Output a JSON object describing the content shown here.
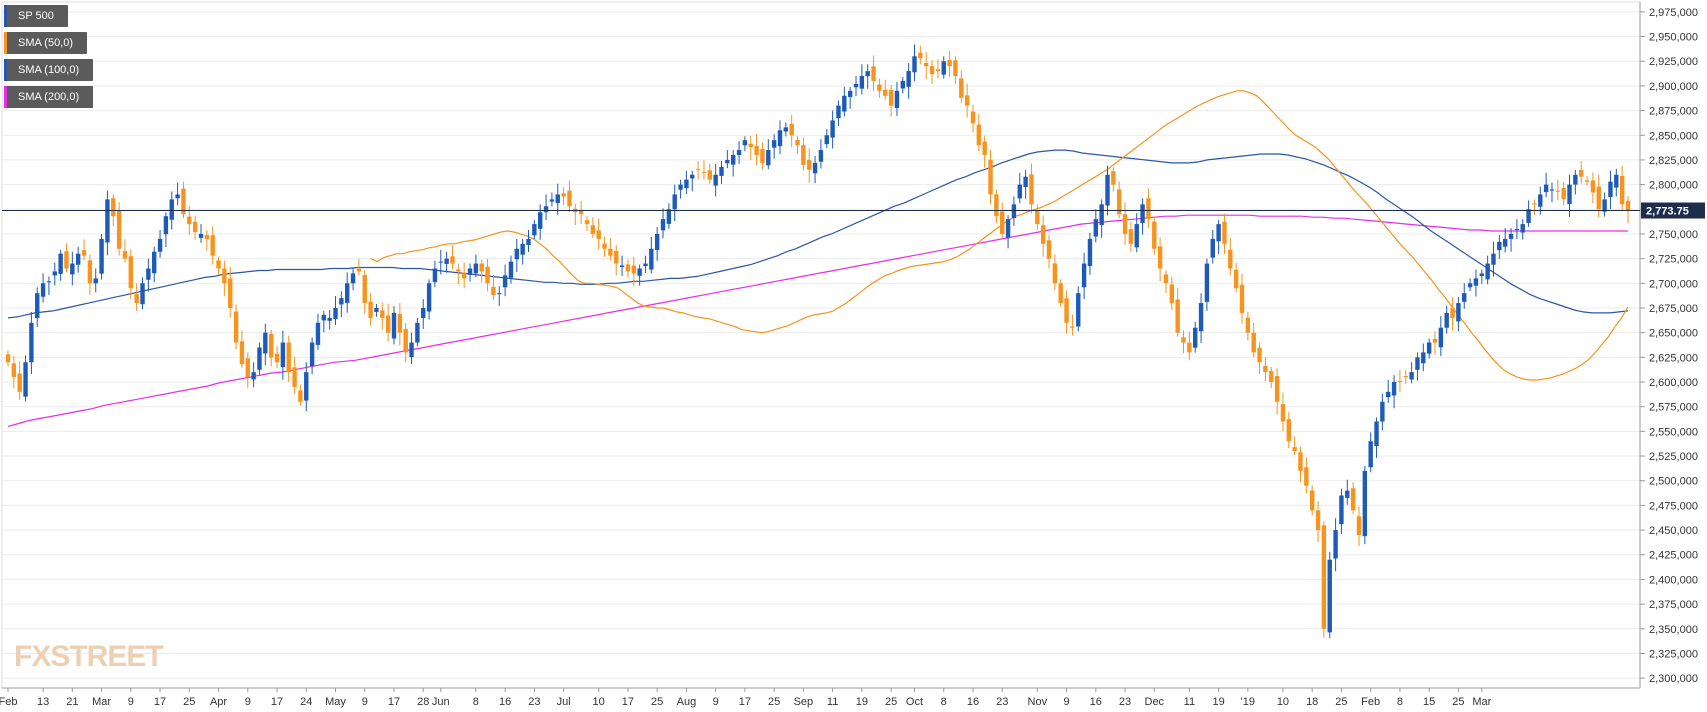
{
  "legend": [
    {
      "label": "SP 500",
      "color": "#2a56a8"
    },
    {
      "label": "SMA (50,0)",
      "color": "#f7931e"
    },
    {
      "label": "SMA (100,0)",
      "color": "#2a56a8"
    },
    {
      "label": "SMA (200,0)",
      "color": "#e62ee6"
    }
  ],
  "last_price_label": "2,773.75",
  "watermark": "FXSTREET",
  "colors": {
    "up": "#1e5bb8",
    "down": "#f7931e",
    "sma50": "#f7931e",
    "sma100": "#2a56a8",
    "sma200": "#e62ee6",
    "price_line": "#1f2d4d",
    "grid": "#ececec",
    "axis": "#9a9a9a"
  },
  "chart_data": {
    "type": "candlestick",
    "title": "SP 500",
    "ylim": [
      2290,
      2985
    ],
    "y_ticks": [
      "2,300,000",
      "2,325,000",
      "2,350,000",
      "2,375,000",
      "2,400,000",
      "2,425,000",
      "2,450,000",
      "2,475,000",
      "2,500,000",
      "2,525,000",
      "2,550,000",
      "2,575,000",
      "2,600,000",
      "2,625,000",
      "2,650,000",
      "2,675,000",
      "2,700,000",
      "2,725,000",
      "2,750,000",
      "2,775,000",
      "2,800,000",
      "2,825,000",
      "2,850,000",
      "2,875,000",
      "2,900,000",
      "2,925,000",
      "2,950,000",
      "2,975,000"
    ],
    "y_tick_values": [
      2300,
      2325,
      2350,
      2375,
      2400,
      2425,
      2450,
      2475,
      2500,
      2525,
      2550,
      2575,
      2600,
      2625,
      2650,
      2675,
      2700,
      2725,
      2750,
      2775,
      2800,
      2825,
      2850,
      2875,
      2900,
      2925,
      2950,
      2975
    ],
    "x_ticks": [
      {
        "label": "Feb",
        "bar": 0
      },
      {
        "label": "13",
        "bar": 6
      },
      {
        "label": "21",
        "bar": 11
      },
      {
        "label": "Mar",
        "bar": 16
      },
      {
        "label": "9",
        "bar": 21
      },
      {
        "label": "17",
        "bar": 26
      },
      {
        "label": "25",
        "bar": 31
      },
      {
        "label": "Apr",
        "bar": 36
      },
      {
        "label": "9",
        "bar": 41
      },
      {
        "label": "17",
        "bar": 46
      },
      {
        "label": "24",
        "bar": 51
      },
      {
        "label": "May",
        "bar": 56
      },
      {
        "label": "9",
        "bar": 61
      },
      {
        "label": "17",
        "bar": 66
      },
      {
        "label": "28",
        "bar": 71
      },
      {
        "label": "Jun",
        "bar": 74
      },
      {
        "label": "8",
        "bar": 80
      },
      {
        "label": "16",
        "bar": 85
      },
      {
        "label": "23",
        "bar": 90
      },
      {
        "label": "Jul",
        "bar": 95
      },
      {
        "label": "10",
        "bar": 101
      },
      {
        "label": "17",
        "bar": 106
      },
      {
        "label": "25",
        "bar": 111
      },
      {
        "label": "Aug",
        "bar": 116
      },
      {
        "label": "9",
        "bar": 121
      },
      {
        "label": "17",
        "bar": 126
      },
      {
        "label": "25",
        "bar": 131
      },
      {
        "label": "Sep",
        "bar": 136
      },
      {
        "label": "11",
        "bar": 141
      },
      {
        "label": "19",
        "bar": 146
      },
      {
        "label": "25",
        "bar": 151
      },
      {
        "label": "Oct",
        "bar": 155
      },
      {
        "label": "8",
        "bar": 160
      },
      {
        "label": "16",
        "bar": 165
      },
      {
        "label": "23",
        "bar": 170
      },
      {
        "label": "Nov",
        "bar": 176
      },
      {
        "label": "9",
        "bar": 181
      },
      {
        "label": "16",
        "bar": 186
      },
      {
        "label": "23",
        "bar": 191
      },
      {
        "label": "Dec",
        "bar": 196
      },
      {
        "label": "11",
        "bar": 202
      },
      {
        "label": "19",
        "bar": 207
      },
      {
        "label": "'19",
        "bar": 212
      },
      {
        "label": "10",
        "bar": 218
      },
      {
        "label": "18",
        "bar": 223
      },
      {
        "label": "25",
        "bar": 228
      },
      {
        "label": "Feb",
        "bar": 233
      },
      {
        "label": "8",
        "bar": 238
      },
      {
        "label": "15",
        "bar": 243
      },
      {
        "label": "25",
        "bar": 248
      },
      {
        "label": "Mar",
        "bar": 252
      }
    ],
    "close": [
      2620,
      2605,
      2590,
      2620,
      2660,
      2690,
      2700,
      2702,
      2712,
      2730,
      2715,
      2720,
      2730,
      2728,
      2700,
      2705,
      2745,
      2785,
      2768,
      2735,
      2725,
      2695,
      2680,
      2700,
      2715,
      2732,
      2745,
      2768,
      2785,
      2790,
      2770,
      2760,
      2752,
      2750,
      2745,
      2728,
      2715,
      2700,
      2675,
      2640,
      2618,
      2605,
      2610,
      2635,
      2650,
      2625,
      2620,
      2640,
      2610,
      2595,
      2580,
      2610,
      2640,
      2660,
      2668,
      2665,
      2675,
      2685,
      2700,
      2710,
      2712,
      2680,
      2665,
      2675,
      2665,
      2650,
      2670,
      2650,
      2630,
      2640,
      2660,
      2675,
      2700,
      2715,
      2722,
      2725,
      2720,
      2712,
      2705,
      2715,
      2720,
      2712,
      2700,
      2688,
      2690,
      2708,
      2722,
      2735,
      2740,
      2745,
      2760,
      2772,
      2778,
      2785,
      2790,
      2788,
      2778,
      2772,
      2770,
      2760,
      2750,
      2745,
      2735,
      2728,
      2720,
      2718,
      2712,
      2710,
      2715,
      2720,
      2735,
      2750,
      2765,
      2775,
      2790,
      2800,
      2805,
      2810,
      2815,
      2812,
      2805,
      2810,
      2818,
      2825,
      2830,
      2835,
      2845,
      2838,
      2830,
      2822,
      2835,
      2845,
      2855,
      2858,
      2850,
      2840,
      2820,
      2815,
      2822,
      2835,
      2850,
      2865,
      2880,
      2890,
      2895,
      2902,
      2910,
      2915,
      2905,
      2895,
      2890,
      2880,
      2895,
      2905,
      2915,
      2930,
      2928,
      2920,
      2912,
      2915,
      2925,
      2920,
      2910,
      2888,
      2880,
      2862,
      2840,
      2830,
      2790,
      2768,
      2750,
      2765,
      2780,
      2800,
      2808,
      2780,
      2760,
      2740,
      2725,
      2700,
      2680,
      2660,
      2655,
      2690,
      2720,
      2745,
      2765,
      2780,
      2810,
      2800,
      2770,
      2750,
      2740,
      2760,
      2780,
      2765,
      2735,
      2715,
      2700,
      2680,
      2650,
      2640,
      2630,
      2655,
      2680,
      2720,
      2745,
      2760,
      2740,
      2715,
      2695,
      2670,
      2650,
      2630,
      2620,
      2610,
      2600,
      2580,
      2560,
      2540,
      2530,
      2510,
      2495,
      2470,
      2450,
      2350,
      2420,
      2450,
      2485,
      2490,
      2470,
      2445,
      2510,
      2540,
      2560,
      2580,
      2590,
      2600,
      2600,
      2605,
      2610,
      2625,
      2630,
      2640,
      2640,
      2655,
      2670,
      2665,
      2680,
      2690,
      2700,
      2705,
      2710,
      2720,
      2730,
      2742,
      2745,
      2750,
      2755,
      2760,
      2775,
      2780,
      2790,
      2800,
      2795,
      2793,
      2785,
      2800,
      2810,
      2808,
      2803,
      2792,
      2775,
      2785,
      2803,
      2810,
      2780,
      2773.75
    ],
    "sma50_start": 0,
    "sma50": [
      2725,
      2722,
      2726,
      2728,
      2730,
      2730,
      2732,
      2733,
      2734,
      2736,
      2737,
      2739,
      2740,
      2740,
      2742,
      2743,
      2744,
      2746,
      2748,
      2750,
      2752,
      2753,
      2752,
      2750,
      2748,
      2745,
      2740,
      2735,
      2728,
      2722,
      2715,
      2708,
      2702,
      2700,
      2700,
      2699,
      2698,
      2697,
      2695,
      2690,
      2685,
      2680,
      2677,
      2676,
      2675,
      2675,
      2673,
      2671,
      2670,
      2668,
      2666,
      2665,
      2664,
      2662,
      2660,
      2658,
      2656,
      2653,
      2652,
      2651,
      2650,
      2651,
      2653,
      2655,
      2657,
      2660,
      2663,
      2666,
      2668,
      2669,
      2670,
      2672,
      2676,
      2680,
      2685,
      2690,
      2695,
      2700,
      2704,
      2708,
      2710,
      2713,
      2715,
      2717,
      2718,
      2719,
      2720,
      2721,
      2722,
      2724,
      2727,
      2731,
      2735,
      2740,
      2745,
      2750,
      2755,
      2760,
      2764,
      2768,
      2770,
      2773,
      2775,
      2777,
      2780,
      2783,
      2787,
      2791,
      2795,
      2799,
      2803,
      2807,
      2811,
      2815,
      2820,
      2825,
      2830,
      2835,
      2840,
      2845,
      2850,
      2855,
      2860,
      2864,
      2868,
      2872,
      2876,
      2880,
      2883,
      2886,
      2889,
      2891,
      2893,
      2895,
      2895,
      2893,
      2890,
      2884,
      2877,
      2870,
      2863,
      2856,
      2850,
      2846,
      2842,
      2838,
      2832,
      2826,
      2818,
      2810,
      2802,
      2794,
      2787,
      2780,
      2772,
      2764,
      2756,
      2748,
      2740,
      2733,
      2726,
      2718,
      2710,
      2702,
      2693,
      2685,
      2676,
      2667,
      2659,
      2650,
      2642,
      2633,
      2625,
      2618,
      2612,
      2608,
      2605,
      2603,
      2602,
      2602,
      2603,
      2604,
      2606,
      2608,
      2611,
      2614,
      2618,
      2623,
      2630,
      2638,
      2646,
      2656,
      2665,
      2676
    ],
    "sma50_x_start": 62,
    "sma100_start": 0,
    "sma100": [
      2665,
      2666,
      2668,
      2670,
      2671,
      2672,
      2674,
      2676,
      2678,
      2680,
      2682,
      2684,
      2686,
      2688,
      2690,
      2692,
      2694,
      2696,
      2698,
      2700,
      2702,
      2704,
      2706,
      2707,
      2709,
      2710,
      2711,
      2712,
      2713,
      2713,
      2714,
      2714,
      2714,
      2714,
      2714,
      2714,
      2715,
      2715,
      2715,
      2716,
      2716,
      2716,
      2716,
      2716,
      2715,
      2715,
      2715,
      2714,
      2713,
      2712,
      2711,
      2710,
      2709,
      2708,
      2707,
      2706,
      2705,
      2704,
      2703,
      2702,
      2701,
      2701,
      2700,
      2700,
      2699,
      2699,
      2699,
      2700,
      2700,
      2701,
      2702,
      2702,
      2703,
      2704,
      2705,
      2705,
      2706,
      2707,
      2709,
      2711,
      2713,
      2715,
      2717,
      2719,
      2722,
      2725,
      2728,
      2732,
      2735,
      2739,
      2743,
      2747,
      2750,
      2754,
      2758,
      2762,
      2766,
      2770,
      2774,
      2778,
      2781,
      2785,
      2789,
      2793,
      2797,
      2801,
      2805,
      2808,
      2812,
      2815,
      2818,
      2822,
      2825,
      2828,
      2831,
      2833,
      2834,
      2835,
      2835,
      2834,
      2832,
      2831,
      2830,
      2829,
      2828,
      2827,
      2826,
      2825,
      2824,
      2823,
      2822,
      2822,
      2822,
      2823,
      2825,
      2826,
      2827,
      2828,
      2829,
      2830,
      2831,
      2831,
      2831,
      2830,
      2828,
      2826,
      2823,
      2820,
      2816,
      2812,
      2808,
      2803,
      2798,
      2792,
      2785,
      2779,
      2773,
      2767,
      2760,
      2753,
      2747,
      2741,
      2735,
      2729,
      2723,
      2717,
      2711,
      2705,
      2699,
      2694,
      2689,
      2685,
      2682,
      2679,
      2676,
      2673,
      2671,
      2670,
      2670,
      2670,
      2671,
      2672
    ],
    "sma100_x_start": 0,
    "sma200": [
      2555,
      2558,
      2561,
      2563,
      2565,
      2567,
      2569,
      2571,
      2573,
      2576,
      2578,
      2580,
      2582,
      2584,
      2586,
      2588,
      2590,
      2592,
      2594,
      2596,
      2599,
      2601,
      2603,
      2605,
      2607,
      2609,
      2610,
      2612,
      2614,
      2616,
      2618,
      2620,
      2621,
      2622,
      2624,
      2626,
      2628,
      2630,
      2632,
      2634,
      2636,
      2638,
      2640,
      2642,
      2644,
      2646,
      2648,
      2650,
      2652,
      2654,
      2656,
      2658,
      2660,
      2662,
      2664,
      2666,
      2668,
      2670,
      2672,
      2674,
      2676,
      2678,
      2680,
      2682,
      2684,
      2686,
      2688,
      2690,
      2692,
      2694,
      2696,
      2698,
      2700,
      2702,
      2704,
      2706,
      2708,
      2710,
      2712,
      2714,
      2716,
      2718,
      2720,
      2722,
      2724,
      2726,
      2728,
      2730,
      2732,
      2734,
      2736,
      2738,
      2740,
      2742,
      2744,
      2746,
      2748,
      2750,
      2752,
      2754,
      2756,
      2758,
      2760,
      2761,
      2762,
      2763,
      2764,
      2765,
      2766,
      2767,
      2768,
      2768,
      2769,
      2769,
      2769,
      2769,
      2769,
      2769,
      2769,
      2768,
      2768,
      2768,
      2768,
      2768,
      2767,
      2767,
      2766,
      2766,
      2765,
      2764,
      2763,
      2762,
      2761,
      2760,
      2759,
      2758,
      2757,
      2756,
      2755,
      2754,
      2754,
      2753,
      2753,
      2753,
      2753,
      2753,
      2753,
      2753,
      2753,
      2753,
      2753,
      2753,
      2753,
      2753,
      2753
    ]
  }
}
